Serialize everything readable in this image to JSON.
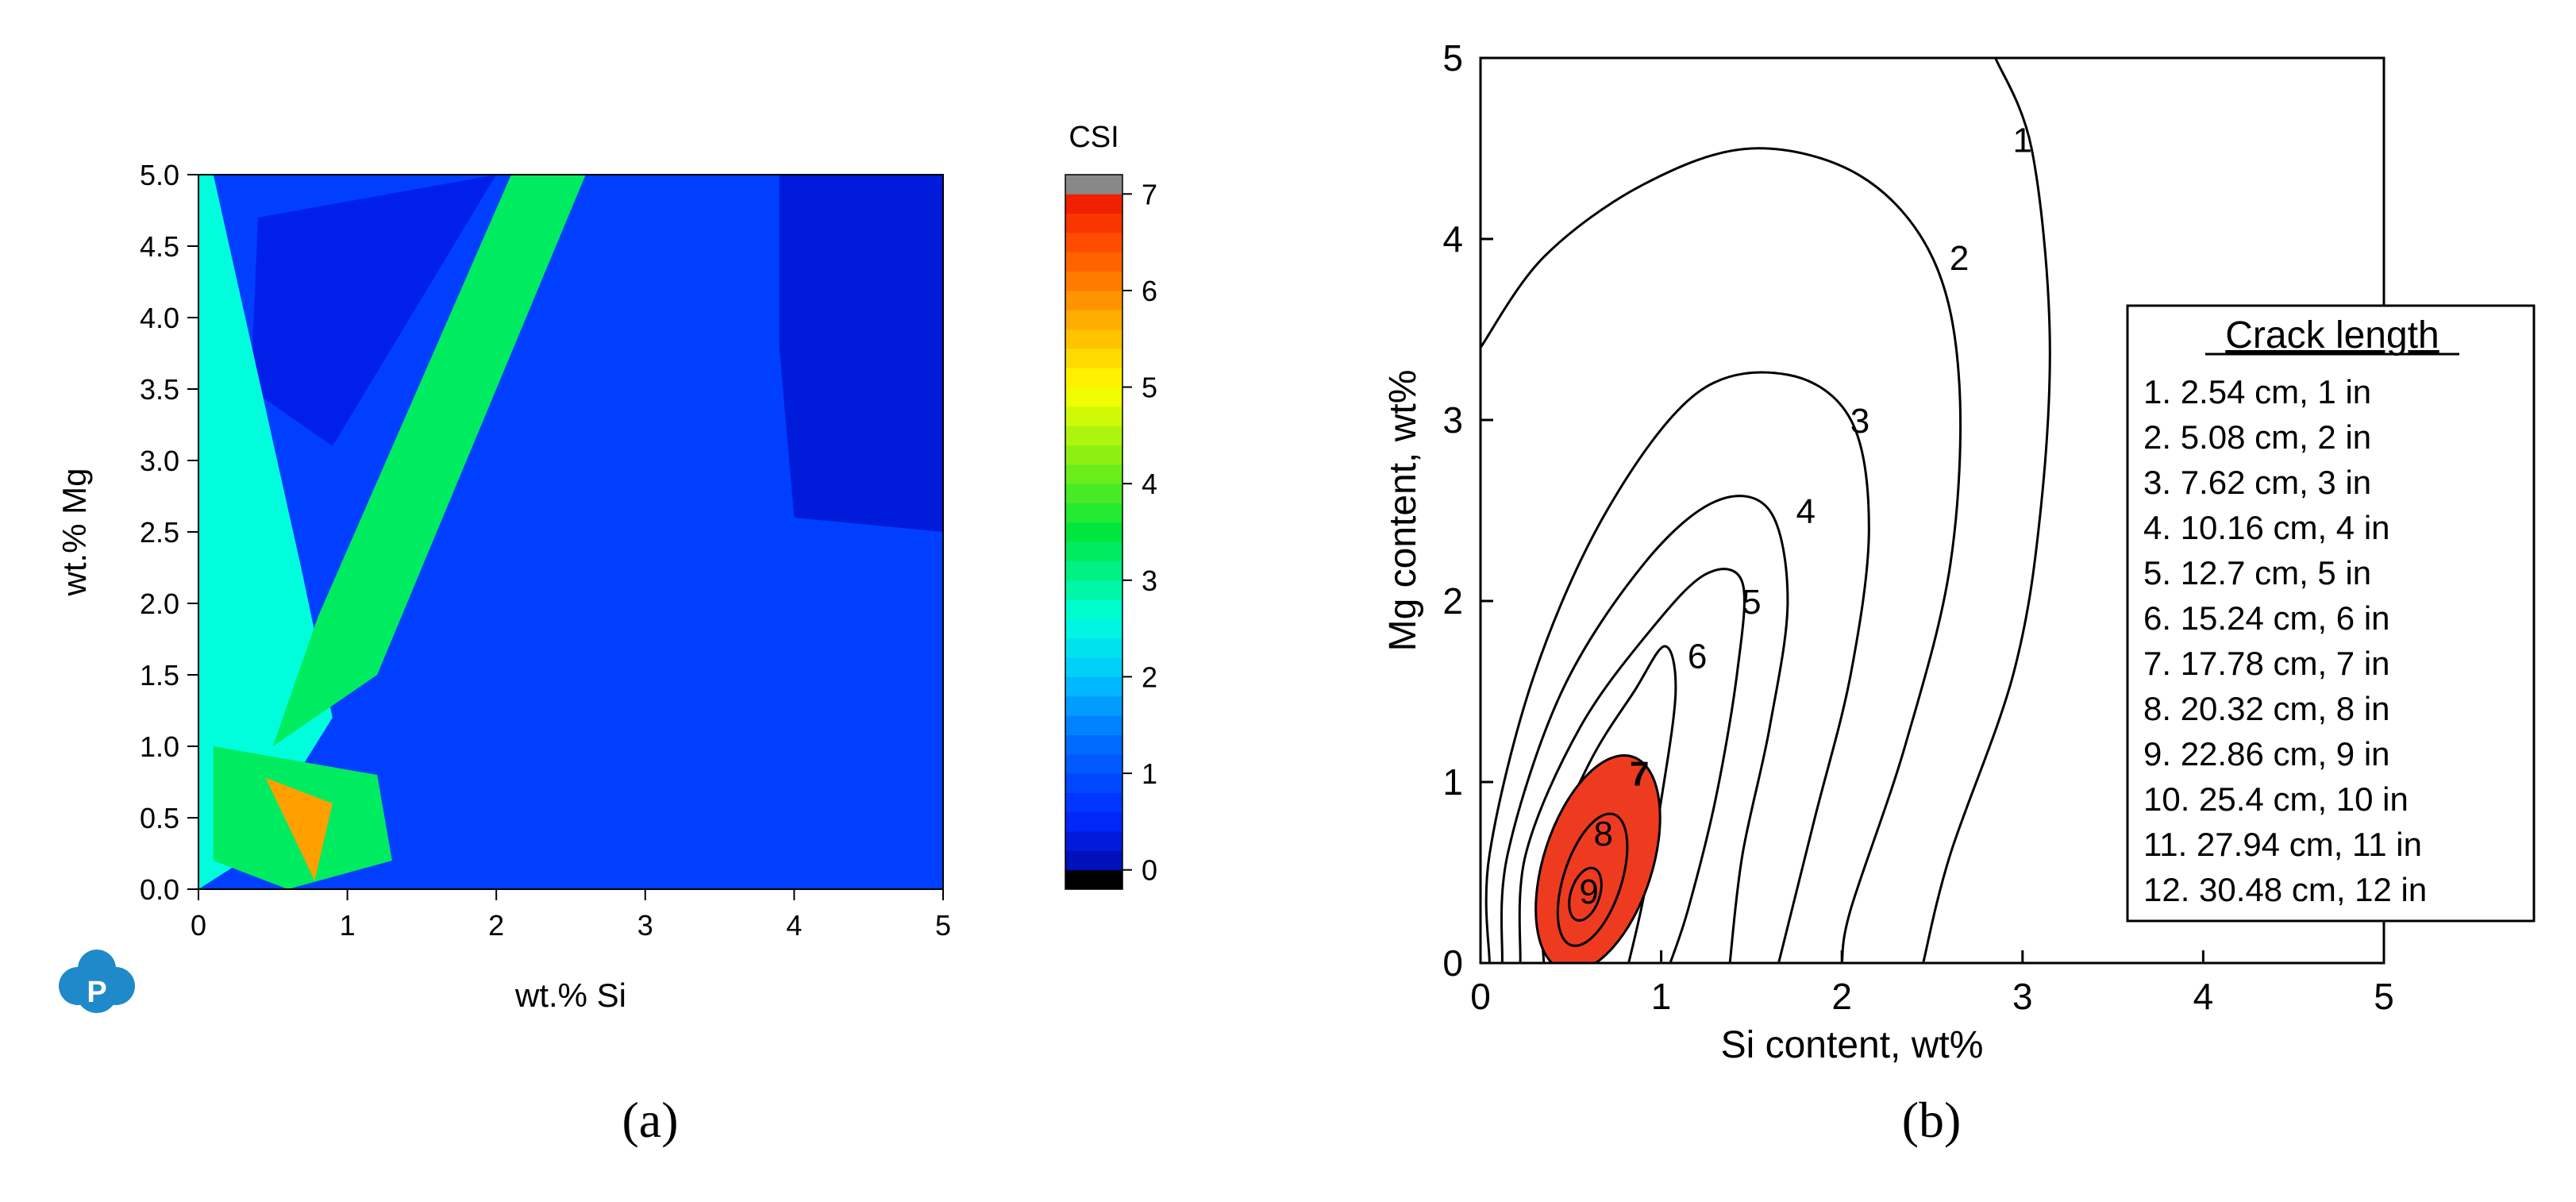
{
  "chart_data": [
    {
      "type": "heatmap",
      "panel_label": "(a)",
      "xlabel": "wt.% Si",
      "ylabel": "wt.% Mg",
      "xlim": [
        0,
        5
      ],
      "ylim": [
        0,
        5
      ],
      "xticks": [
        "0",
        "1",
        "2",
        "3",
        "4",
        "5"
      ],
      "yticks": [
        "0.0",
        "0.5",
        "1.0",
        "1.5",
        "2.0",
        "2.5",
        "3.0",
        "3.5",
        "4.0",
        "4.5",
        "5.0"
      ],
      "colorbar": {
        "title": "CSI",
        "range": [
          -0.2,
          7.2
        ],
        "ticks": [
          "0",
          "1",
          "2",
          "3",
          "4",
          "5",
          "6",
          "7"
        ]
      },
      "regions_csi": [
        {
          "name": "background",
          "csi": 0.8
        },
        {
          "name": "high-Si corner",
          "csi": 0.3
        },
        {
          "name": "upper-left region",
          "csi": 0.4
        },
        {
          "name": "diagonal ridge",
          "csi": 3.3
        },
        {
          "name": "low-Si left band",
          "csi": 2.6
        },
        {
          "name": "peak",
          "csi": 5.8,
          "si": 0.7,
          "mg": 0.5
        }
      ],
      "logo": "mdpi-logo"
    },
    {
      "type": "line",
      "panel_label": "(b)",
      "xlabel": "Si content, wt%",
      "ylabel": "Mg content, wt%",
      "xlim": [
        0,
        5
      ],
      "ylim": [
        0,
        5
      ],
      "xticks": [
        "0",
        "1",
        "2",
        "3",
        "4",
        "5"
      ],
      "yticks": [
        "0",
        "1",
        "2",
        "3",
        "4",
        "5"
      ],
      "contour_labels": [
        "1",
        "2",
        "3",
        "4",
        "5",
        "6",
        "7",
        "8",
        "9"
      ],
      "contours": [
        {
          "level": 1,
          "points": [
            [
              2.85,
              5.0
            ],
            [
              3.05,
              4.5
            ],
            [
              3.15,
              3.5
            ],
            [
              3.1,
              2.5
            ],
            [
              2.95,
              1.6
            ],
            [
              2.6,
              0.6
            ],
            [
              2.45,
              0.0
            ]
          ]
        },
        {
          "level": 2,
          "points": [
            [
              0.0,
              3.4
            ],
            [
              0.35,
              3.9
            ],
            [
              0.9,
              4.3
            ],
            [
              1.5,
              4.5
            ],
            [
              2.1,
              4.35
            ],
            [
              2.5,
              3.9
            ],
            [
              2.65,
              3.2
            ],
            [
              2.6,
              2.2
            ],
            [
              2.35,
              1.2
            ],
            [
              2.05,
              0.3
            ],
            [
              2.0,
              0.0
            ]
          ]
        },
        {
          "level": 3,
          "points": [
            [
              0.05,
              0.0
            ],
            [
              0.05,
              0.6
            ],
            [
              0.3,
              1.6
            ],
            [
              0.7,
              2.5
            ],
            [
              1.2,
              3.15
            ],
            [
              1.7,
              3.25
            ],
            [
              2.05,
              3.0
            ],
            [
              2.15,
              2.4
            ],
            [
              2.05,
              1.6
            ],
            [
              1.85,
              0.8
            ],
            [
              1.65,
              0.0
            ]
          ]
        },
        {
          "level": 4,
          "points": [
            [
              0.12,
              0.0
            ],
            [
              0.15,
              0.6
            ],
            [
              0.45,
              1.5
            ],
            [
              0.9,
              2.2
            ],
            [
              1.3,
              2.55
            ],
            [
              1.6,
              2.5
            ],
            [
              1.7,
              2.0
            ],
            [
              1.6,
              1.3
            ],
            [
              1.45,
              0.6
            ],
            [
              1.38,
              0.0
            ]
          ]
        },
        {
          "level": 5,
          "points": [
            [
              0.22,
              0.0
            ],
            [
              0.25,
              0.6
            ],
            [
              0.55,
              1.3
            ],
            [
              0.95,
              1.85
            ],
            [
              1.25,
              2.15
            ],
            [
              1.45,
              2.1
            ],
            [
              1.42,
              1.6
            ],
            [
              1.3,
              0.9
            ],
            [
              1.15,
              0.3
            ],
            [
              1.05,
              0.0
            ]
          ]
        },
        {
          "level": 6,
          "points": [
            [
              0.35,
              0.0
            ],
            [
              0.35,
              0.5
            ],
            [
              0.6,
              1.1
            ],
            [
              0.85,
              1.5
            ],
            [
              1.02,
              1.75
            ],
            [
              1.08,
              1.5
            ],
            [
              1.0,
              0.9
            ],
            [
              0.9,
              0.35
            ],
            [
              0.82,
              0.0
            ]
          ]
        },
        {
          "level": 7,
          "center": [
            0.65,
            0.55
          ],
          "rx": 0.3,
          "ry": 0.62,
          "rotation_deg": 18,
          "filled_color": "#ee3b1f"
        },
        {
          "level": 8,
          "center": [
            0.62,
            0.46
          ],
          "rx": 0.16,
          "ry": 0.38,
          "rotation_deg": 18
        },
        {
          "level": 9,
          "center": [
            0.58,
            0.38
          ],
          "rx": 0.08,
          "ry": 0.15,
          "rotation_deg": 18
        }
      ],
      "legend": {
        "title": "Crack length",
        "placement": "right",
        "entries": [
          "1. 2.54 cm, 1 in",
          "2. 5.08 cm, 2 in",
          "3. 7.62 cm, 3 in",
          "4. 10.16 cm, 4 in",
          "5. 12.7 cm, 5 in",
          "6. 15.24 cm, 6 in",
          "7. 17.78 cm, 7 in",
          "8. 20.32 cm, 8 in",
          "9. 22.86 cm, 9 in",
          "10. 25.4 cm, 10 in",
          "11. 27.94 cm, 11 in",
          "12. 30.48 cm, 12 in"
        ]
      }
    }
  ]
}
